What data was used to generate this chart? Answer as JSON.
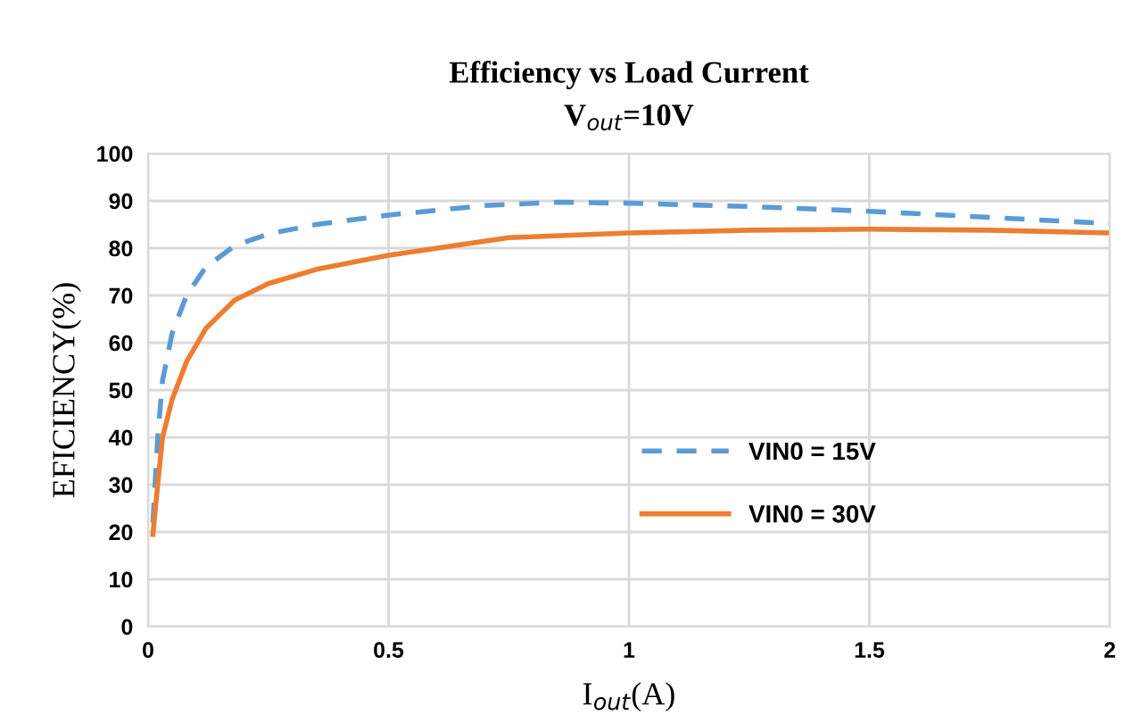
{
  "chart_data": {
    "type": "line",
    "title": "Efficiency vs Load Current",
    "subtitle": "V$_{out}$=10V",
    "xlabel": "I$_{out}$(A)",
    "ylabel": "EFICIENCY(%)",
    "xlim": [
      0,
      2
    ],
    "xticks": [
      0,
      0.5,
      1,
      1.5,
      2
    ],
    "ylim": [
      0,
      100
    ],
    "yticks": [
      0,
      10,
      20,
      30,
      40,
      50,
      60,
      70,
      80,
      90,
      100
    ],
    "grid": true,
    "legend": "right",
    "series": [
      {
        "name": "VIN0 = 15V",
        "color": "#5b9bd5",
        "line_style": "dashed",
        "x": [
          0.01,
          0.02,
          0.03,
          0.05,
          0.08,
          0.12,
          0.18,
          0.25,
          0.35,
          0.5,
          0.7,
          0.85,
          1.0,
          1.25,
          1.5,
          1.75,
          2.0
        ],
        "values": [
          22,
          40,
          52,
          62,
          70,
          76,
          80.5,
          83,
          85,
          87,
          89,
          89.7,
          89.5,
          88.8,
          87.8,
          86.5,
          85.2
        ]
      },
      {
        "name": "VIN0 = 30V",
        "color": "#ed7d31",
        "line_style": "solid",
        "x": [
          0.01,
          0.02,
          0.03,
          0.05,
          0.08,
          0.12,
          0.18,
          0.25,
          0.35,
          0.5,
          0.75,
          1.0,
          1.25,
          1.5,
          1.75,
          2.0
        ],
        "values": [
          19.5,
          30,
          40,
          48,
          56,
          63,
          69,
          72.5,
          75.5,
          78.5,
          82.2,
          83.2,
          83.8,
          84,
          83.8,
          83.2
        ]
      }
    ]
  }
}
